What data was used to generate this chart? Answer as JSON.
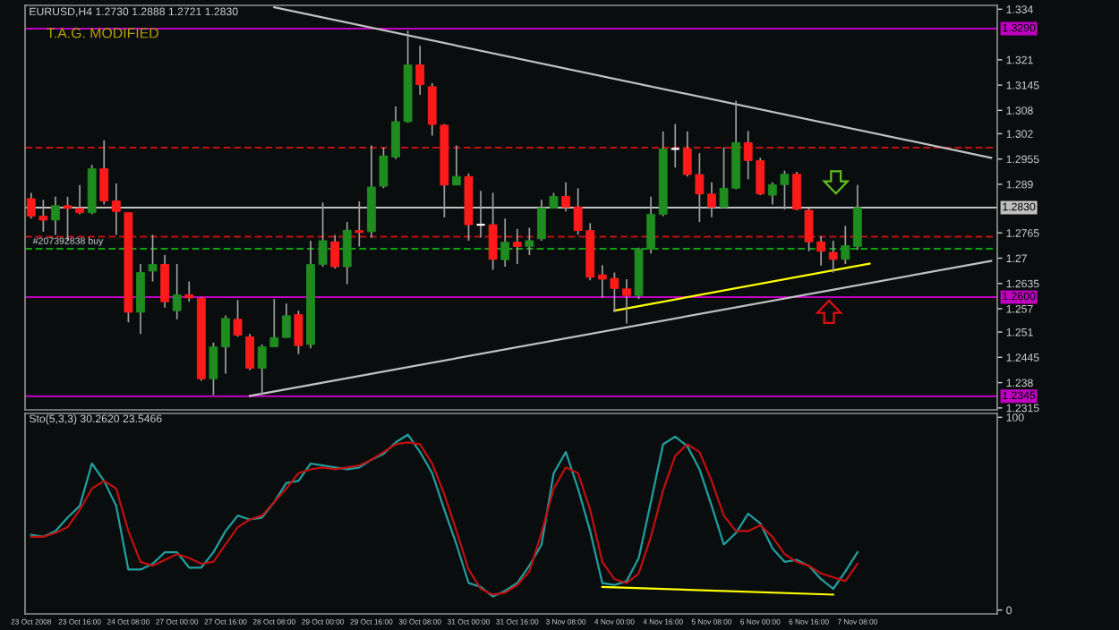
{
  "chart_data": [
    {
      "type": "candlestick",
      "title": "EURUSD,H4 1.2730 1.2888 1.2721 1.2830",
      "subtitle": "T.A.G. MODIFIED",
      "categories": [
        null,
        null,
        null,
        null,
        null,
        null,
        null,
        null,
        null,
        null,
        null,
        null,
        null,
        null,
        null,
        null,
        null,
        null,
        null,
        null,
        null,
        null,
        null,
        null,
        null,
        null,
        null,
        null,
        null,
        null,
        null,
        null,
        null,
        null,
        null,
        null,
        null,
        null,
        null,
        null,
        null,
        null,
        null,
        null,
        null,
        null,
        null,
        null,
        null,
        null,
        null,
        null,
        null,
        null,
        null,
        null,
        null,
        null,
        null,
        null,
        null,
        null,
        null,
        null,
        null,
        null,
        null,
        null,
        null,
        null,
        null,
        null,
        null,
        null,
        null,
        null,
        null,
        null,
        null,
        null
      ],
      "ohlc": [
        [
          1.2853,
          1.2868,
          1.2802,
          1.2808
        ],
        [
          1.2808,
          1.285,
          1.2768,
          1.2798
        ],
        [
          1.2798,
          1.2858,
          1.276,
          1.2835
        ],
        [
          1.2835,
          1.2858,
          1.2745,
          1.2828
        ],
        [
          1.2828,
          1.2888,
          1.2813,
          1.2817
        ],
        [
          1.2817,
          1.294,
          1.2813,
          1.293
        ],
        [
          1.293,
          1.3003,
          1.2838,
          1.2847
        ],
        [
          1.2847,
          1.2892,
          1.276,
          1.282
        ],
        [
          1.2817,
          1.2817,
          1.2535,
          1.2561
        ],
        [
          1.2561,
          1.2685,
          1.2505,
          1.2663
        ],
        [
          1.2667,
          1.276,
          1.264,
          1.2684
        ],
        [
          1.2684,
          1.2708,
          1.2573,
          1.2588
        ],
        [
          1.2565,
          1.2685,
          1.2543,
          1.2606
        ],
        [
          1.2606,
          1.264,
          1.2588,
          1.2598
        ],
        [
          1.2597,
          1.26,
          1.2385,
          1.239
        ],
        [
          1.239,
          1.2483,
          1.2348,
          1.2472
        ],
        [
          1.2472,
          1.2553,
          1.2403,
          1.2545
        ],
        [
          1.2543,
          1.2592,
          1.2498,
          1.2502
        ],
        [
          1.2498,
          1.2505,
          1.2412,
          1.2417
        ],
        [
          1.2417,
          1.2478,
          1.2348,
          1.2472
        ],
        [
          1.2472,
          1.2595,
          1.2471,
          1.2496
        ],
        [
          1.2496,
          1.2583,
          1.2496,
          1.2552
        ],
        [
          1.2555,
          1.2565,
          1.2453,
          1.2475
        ],
        [
          1.2478,
          1.2745,
          1.2468,
          1.2684
        ],
        [
          1.2684,
          1.2843,
          1.2678,
          1.2745
        ],
        [
          1.2742,
          1.276,
          1.2673,
          1.2678
        ],
        [
          1.2678,
          1.2793,
          1.2633,
          1.2772
        ],
        [
          1.2771,
          1.2846,
          1.273,
          1.2766
        ],
        [
          1.2768,
          1.299,
          1.2753,
          1.2883
        ],
        [
          1.2885,
          1.2985,
          1.288,
          1.2963
        ],
        [
          1.296,
          1.309,
          1.2955,
          1.3051
        ],
        [
          1.3051,
          1.3285,
          1.3048,
          1.3197
        ],
        [
          1.3197,
          1.3246,
          1.312,
          1.3146
        ],
        [
          1.3141,
          1.315,
          1.3015,
          1.3044
        ],
        [
          1.3042,
          1.3045,
          1.2805,
          1.2888
        ],
        [
          1.2888,
          1.299,
          1.2888,
          1.291
        ],
        [
          1.291,
          1.2918,
          1.2745,
          1.2786
        ],
        [
          1.2786,
          1.2873,
          1.2753,
          1.2786
        ],
        [
          1.2786,
          1.2868,
          1.267,
          1.2697
        ],
        [
          1.2696,
          1.2802,
          1.2678,
          1.2741
        ],
        [
          1.2741,
          1.2775,
          1.2685,
          1.273
        ],
        [
          1.273,
          1.2778,
          1.2708,
          1.2745
        ],
        [
          1.275,
          1.285,
          1.2745,
          1.2829
        ],
        [
          1.2829,
          1.2868,
          1.2828,
          1.2859
        ],
        [
          1.2859,
          1.2895,
          1.282,
          1.2831
        ],
        [
          1.2832,
          1.288,
          1.276,
          1.2771
        ],
        [
          1.2771,
          1.279,
          1.2643,
          1.2651
        ],
        [
          1.2657,
          1.2682,
          1.2598,
          1.2646
        ],
        [
          1.2648,
          1.2663,
          1.2562,
          1.2622
        ],
        [
          1.2621,
          1.2646,
          1.2532,
          1.2604
        ],
        [
          1.2604,
          1.2727,
          1.2595,
          1.2723
        ],
        [
          1.2723,
          1.2858,
          1.2712,
          1.2813
        ],
        [
          1.2813,
          1.3026,
          1.2808,
          1.2981
        ],
        [
          1.2981,
          1.3045,
          1.2933,
          1.2981
        ],
        [
          1.2981,
          1.3026,
          1.291,
          1.2915
        ],
        [
          1.2915,
          1.297,
          1.2793,
          1.2865
        ],
        [
          1.2865,
          1.2895,
          1.2805,
          1.2831
        ],
        [
          1.2831,
          1.2985,
          1.2828,
          1.288
        ],
        [
          1.288,
          1.3105,
          1.2877,
          1.2997
        ],
        [
          1.2997,
          1.3027,
          1.2903,
          1.2951
        ],
        [
          1.2951,
          1.2958,
          1.2862,
          1.2865
        ],
        [
          1.2862,
          1.2895,
          1.2838,
          1.2889
        ],
        [
          1.2889,
          1.2925,
          1.2825,
          1.2916
        ],
        [
          1.2916,
          1.2922,
          1.2823,
          1.2826
        ],
        [
          1.2823,
          1.2828,
          1.2718,
          1.2742
        ],
        [
          1.2742,
          1.2757,
          1.2681,
          1.2718
        ],
        [
          1.2715,
          1.2745,
          1.2663,
          1.2697
        ],
        [
          1.2697,
          1.2783,
          1.2685,
          1.2732
        ],
        [
          1.273,
          1.2888,
          1.2721,
          1.283
        ],
        null,
        null,
        null,
        null,
        null,
        null,
        null,
        null,
        null,
        null,
        null
      ],
      "colors": [
        "#ff1a1a",
        "#ff1a1a",
        "#1e8c1e",
        "#ff1a1a",
        "#ff1a1a",
        "#1e8c1e",
        "#ff1a1a",
        "#ff1a1a",
        "#ff1a1a",
        "#1e8c1e",
        "#1e8c1e",
        "#ff1a1a",
        "#1e8c1e",
        "#ff1a1a",
        "#ff1a1a",
        "#1e8c1e",
        "#1e8c1e",
        "#ff1a1a",
        "#ff1a1a",
        "#1e8c1e",
        "#1e8c1e",
        "#1e8c1e",
        "#ff1a1a",
        "#1e8c1e",
        "#1e8c1e",
        "#ff1a1a",
        "#1e8c1e",
        "#ff1a1a",
        "#1e8c1e",
        "#1e8c1e",
        "#1e8c1e",
        "#1e8c1e",
        "#ff1a1a",
        "#ff1a1a",
        "#ff1a1a",
        "#1e8c1e",
        "#ff1a1a",
        "#ffffff",
        "#ff1a1a",
        "#1e8c1e",
        "#ff1a1a",
        "#1e8c1e",
        "#1e8c1e",
        "#1e8c1e",
        "#ff1a1a",
        "#ff1a1a",
        "#ff1a1a",
        "#ff1a1a",
        "#ff1a1a",
        "#ff1a1a",
        "#1e8c1e",
        "#1e8c1e",
        "#1e8c1e",
        "#ffffff",
        "#ff1a1a",
        "#ff1a1a",
        "#ff1a1a",
        "#1e8c1e",
        "#1e8c1e",
        "#ff1a1a",
        "#ff1a1a",
        "#1e8c1e",
        "#1e8c1e",
        "#ff1a1a",
        "#ff1a1a",
        "#ff1a1a",
        "#ff1a1a",
        "#1e8c1e",
        "#1e8c1e",
        null,
        null,
        null,
        null,
        null,
        null,
        null,
        null,
        null,
        null,
        null
      ],
      "series": [
        {
          "type": "line",
          "color": "#c0c0c0",
          "values": [
            null,
            null,
            null,
            null,
            null,
            null,
            null,
            null,
            null,
            null,
            null,
            null,
            null,
            null,
            null,
            null,
            null,
            null,
            null,
            null,
            1.3345,
            null,
            null,
            null,
            null,
            null,
            null,
            null,
            null,
            null,
            null,
            null,
            null,
            null,
            null,
            null,
            null,
            null,
            null,
            null,
            null,
            null,
            null,
            null,
            null,
            null,
            null,
            null,
            null,
            null,
            null,
            null,
            null,
            null,
            null,
            null,
            null,
            null,
            null,
            null,
            null,
            null,
            null,
            null,
            null,
            null,
            null,
            null,
            null,
            null,
            null,
            null,
            null,
            null,
            null,
            null,
            null,
            null,
            null,
            1.2958
          ]
        },
        {
          "type": "line",
          "color": "#c0c0c0",
          "values": [
            null,
            null,
            null,
            null,
            null,
            null,
            null,
            null,
            null,
            null,
            null,
            null,
            null,
            null,
            null,
            null,
            null,
            null,
            1.2346,
            null,
            null,
            null,
            null,
            null,
            null,
            null,
            null,
            null,
            null,
            null,
            null,
            null,
            null,
            null,
            null,
            null,
            null,
            null,
            null,
            null,
            null,
            null,
            null,
            null,
            null,
            null,
            null,
            null,
            null,
            null,
            null,
            null,
            null,
            null,
            null,
            null,
            null,
            null,
            null,
            null,
            null,
            null,
            null,
            null,
            null,
            null,
            null,
            null,
            null,
            null,
            null,
            null,
            null,
            null,
            null,
            null,
            null,
            null,
            null,
            1.2693
          ]
        },
        {
          "type": "line",
          "color": "#ffff00",
          "values": [
            null,
            null,
            null,
            null,
            null,
            null,
            null,
            null,
            null,
            null,
            null,
            null,
            null,
            null,
            null,
            null,
            null,
            null,
            null,
            null,
            null,
            null,
            null,
            null,
            null,
            null,
            null,
            null,
            null,
            null,
            null,
            null,
            null,
            null,
            null,
            null,
            null,
            null,
            null,
            null,
            null,
            null,
            null,
            null,
            null,
            null,
            null,
            null,
            1.2565,
            null,
            null,
            null,
            null,
            null,
            null,
            null,
            null,
            null,
            null,
            null,
            null,
            null,
            null,
            null,
            null,
            null,
            null,
            null,
            null,
            1.2686,
            null,
            null,
            null,
            null,
            null,
            null,
            null,
            null,
            null,
            null
          ]
        }
      ],
      "ref_lines": [
        {
          "axis": "y",
          "value": 1.329,
          "label": "1.3290",
          "color": "#c000c0",
          "line_style": "solid"
        },
        {
          "axis": "y",
          "value": 1.26,
          "label": "1.2600",
          "color": "#c000c0",
          "line_style": "solid"
        },
        {
          "axis": "y",
          "value": 1.2345,
          "label": "1.2345",
          "color": "#c000c0",
          "line_style": "solid"
        },
        {
          "axis": "y",
          "value": 1.283,
          "label": "1.2830",
          "color": "#c0c0c0",
          "line_style": "solid"
        },
        {
          "axis": "y",
          "value": 1.2984,
          "color": "#c01010",
          "line_style": "dashed"
        },
        {
          "axis": "y",
          "value": 1.2755,
          "color": "#c01010",
          "line_style": "dashed"
        },
        {
          "axis": "y",
          "value": 1.2724,
          "color": "#10a010",
          "line_style": "dashed"
        }
      ],
      "annotations": [
        "#207392838 buy"
      ],
      "ylim": [
        1.231,
        1.335
      ],
      "yticks": [
        1.334,
        1.321,
        1.3145,
        1.308,
        1.302,
        1.2955,
        1.289,
        1.2765,
        1.27,
        1.2635,
        1.257,
        1.251,
        1.2445,
        1.238,
        1.2315
      ],
      "grid": false
    },
    {
      "type": "line",
      "title": "Sto(5,3,3) 30.2620 23.5466",
      "categories": [
        "23 Oct 2008",
        null,
        null,
        null,
        "23 Oct 16:00",
        null,
        null,
        null,
        "24 Oct 08:00",
        null,
        null,
        null,
        "27 Oct 00:00",
        null,
        null,
        null,
        "27 Oct 16:00",
        null,
        null,
        null,
        "28 Oct 08:00",
        null,
        null,
        null,
        "29 Oct 00:00",
        null,
        null,
        null,
        "29 Oct 16:00",
        null,
        null,
        null,
        "30 Oct 08:00",
        null,
        null,
        null,
        "31 Oct 00:00",
        null,
        null,
        null,
        "31 Oct 16:00",
        null,
        null,
        null,
        "3 Nov 08:00",
        null,
        null,
        null,
        "4 Nov 00:00",
        null,
        null,
        null,
        "4 Nov 16:00",
        null,
        null,
        null,
        "5 Nov 08:00",
        null,
        null,
        null,
        "6 Nov 00:00",
        null,
        null,
        null,
        "6 Nov 16:00",
        null,
        null,
        null,
        "7 Nov 08:00",
        null,
        null,
        null,
        null,
        null,
        null,
        null,
        null,
        null,
        null,
        null
      ],
      "series": [
        {
          "color": "#20a0a0",
          "values": [
            39,
            38,
            41,
            48,
            54,
            76,
            67,
            54,
            21,
            21,
            24,
            30,
            30,
            22,
            22,
            30,
            41,
            49,
            47,
            48,
            56,
            66,
            67,
            76,
            75,
            74,
            73,
            74,
            78,
            81,
            87,
            91,
            82,
            71,
            52,
            34,
            14,
            12,
            7,
            10,
            14,
            23,
            34,
            71,
            82,
            63,
            41,
            14,
            13,
            15,
            27,
            56,
            86,
            90,
            85,
            73,
            54,
            34,
            40,
            50,
            45,
            32,
            25,
            26,
            23,
            16,
            11,
            20,
            30,
            null,
            null,
            null,
            null,
            null,
            null,
            null,
            null,
            null,
            null,
            null
          ]
        },
        {
          "color": "#c01010",
          "values": [
            38,
            38,
            40,
            43,
            52,
            63,
            67,
            63,
            41,
            25,
            23,
            26,
            29,
            27,
            24,
            25,
            34,
            43,
            47,
            49,
            56,
            63,
            71,
            73,
            74,
            73,
            74,
            75,
            78,
            82,
            86,
            87,
            86,
            76,
            60,
            41,
            21,
            11,
            8,
            9,
            13,
            20,
            40,
            63,
            74,
            71,
            52,
            25,
            16,
            14,
            19,
            38,
            62,
            80,
            86,
            82,
            67,
            49,
            41,
            41,
            44,
            38,
            29,
            25,
            23,
            19,
            17,
            15,
            24,
            null,
            null,
            null,
            null,
            null,
            null,
            null,
            null,
            null,
            null,
            null
          ]
        },
        {
          "color": "#ffff00",
          "values": [
            null,
            null,
            null,
            null,
            null,
            null,
            null,
            null,
            null,
            null,
            null,
            null,
            null,
            null,
            null,
            null,
            null,
            null,
            null,
            null,
            null,
            null,
            null,
            null,
            null,
            null,
            null,
            null,
            null,
            null,
            null,
            null,
            null,
            null,
            null,
            null,
            null,
            null,
            null,
            null,
            null,
            null,
            null,
            null,
            null,
            null,
            null,
            12,
            null,
            null,
            null,
            null,
            null,
            null,
            null,
            null,
            null,
            null,
            null,
            null,
            null,
            null,
            null,
            null,
            null,
            null,
            8,
            null,
            null,
            null,
            null,
            null,
            null,
            null,
            null,
            null,
            null,
            null,
            null,
            null
          ]
        }
      ],
      "ylim": [
        -2,
        102
      ],
      "yticks": [
        100,
        0
      ],
      "grid": false
    }
  ]
}
